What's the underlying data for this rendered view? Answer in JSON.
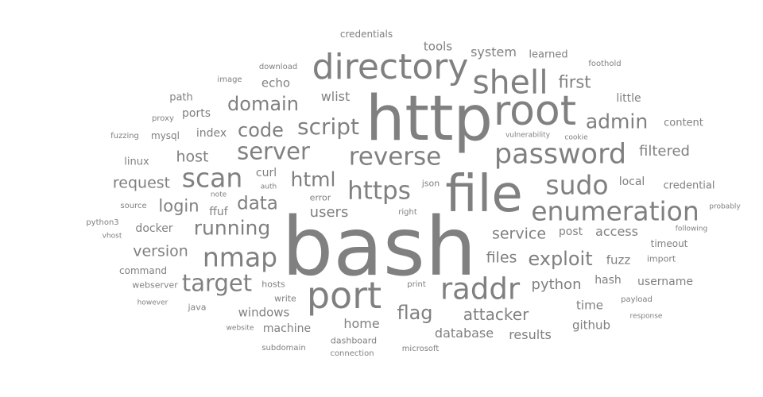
{
  "word_color": "#808080",
  "background_color": "#ffffff",
  "words": [
    {
      "text": "bash",
      "weight": 100
    },
    {
      "text": "http",
      "weight": 76
    },
    {
      "text": "file",
      "weight": 60
    },
    {
      "text": "root",
      "weight": 54
    },
    {
      "text": "port",
      "weight": 48
    },
    {
      "text": "directory",
      "weight": 44
    },
    {
      "text": "shell",
      "weight": 41
    },
    {
      "text": "raddr",
      "weight": 38
    },
    {
      "text": "password",
      "weight": 37
    },
    {
      "text": "scan",
      "weight": 36
    },
    {
      "text": "nmap",
      "weight": 36
    },
    {
      "text": "enumeration",
      "weight": 34
    },
    {
      "text": "sudo",
      "weight": 34
    },
    {
      "text": "https",
      "weight": 33
    },
    {
      "text": "server",
      "weight": 31
    },
    {
      "text": "reverse",
      "weight": 31
    },
    {
      "text": "target",
      "weight": 31
    },
    {
      "text": "script",
      "weight": 28
    },
    {
      "text": "html",
      "weight": 26
    },
    {
      "text": "running",
      "weight": 26
    },
    {
      "text": "admin",
      "weight": 26
    },
    {
      "text": "code",
      "weight": 25
    },
    {
      "text": "domain",
      "weight": 24
    },
    {
      "text": "exploit",
      "weight": 24
    },
    {
      "text": "flag",
      "weight": 24
    },
    {
      "text": "data",
      "weight": 24
    },
    {
      "text": "first",
      "weight": 21
    },
    {
      "text": "attacker",
      "weight": 21
    },
    {
      "text": "login",
      "weight": 21
    },
    {
      "text": "service",
      "weight": 21
    },
    {
      "text": "filtered",
      "weight": 19
    },
    {
      "text": "files",
      "weight": 19
    },
    {
      "text": "host",
      "weight": 19
    },
    {
      "text": "request",
      "weight": 19
    },
    {
      "text": "version",
      "weight": 19
    },
    {
      "text": "python",
      "weight": 18
    },
    {
      "text": "users",
      "weight": 18
    },
    {
      "text": "access",
      "weight": 17
    },
    {
      "text": "database",
      "weight": 17
    },
    {
      "text": "system",
      "weight": 17
    },
    {
      "text": "home",
      "weight": 17
    },
    {
      "text": "wlist",
      "weight": 17
    },
    {
      "text": "results",
      "weight": 17
    },
    {
      "text": "windows",
      "weight": 16
    },
    {
      "text": "echo",
      "weight": 16
    },
    {
      "text": "time",
      "weight": 16
    },
    {
      "text": "fuzz",
      "weight": 16
    },
    {
      "text": "tools",
      "weight": 16
    },
    {
      "text": "github",
      "weight": 16
    },
    {
      "text": "little",
      "weight": 15
    },
    {
      "text": "hash",
      "weight": 15
    },
    {
      "text": "username",
      "weight": 15
    },
    {
      "text": "local",
      "weight": 15
    },
    {
      "text": "curl",
      "weight": 15
    },
    {
      "text": "index",
      "weight": 14
    },
    {
      "text": "machine",
      "weight": 14
    },
    {
      "text": "ports",
      "weight": 14
    },
    {
      "text": "learned",
      "weight": 14
    },
    {
      "text": "content",
      "weight": 14
    },
    {
      "text": "credential",
      "weight": 14
    },
    {
      "text": "ffuf",
      "weight": 14
    },
    {
      "text": "docker",
      "weight": 14
    },
    {
      "text": "path",
      "weight": 13
    },
    {
      "text": "credentials",
      "weight": 13
    },
    {
      "text": "timeout",
      "weight": 13
    },
    {
      "text": "post",
      "weight": 13
    },
    {
      "text": "command",
      "weight": 13
    },
    {
      "text": "linux",
      "weight": 13
    },
    {
      "text": "mysql",
      "weight": 12
    },
    {
      "text": "error",
      "weight": 12
    },
    {
      "text": "json",
      "weight": 12
    },
    {
      "text": "hosts",
      "weight": 12
    },
    {
      "text": "write",
      "weight": 12
    },
    {
      "text": "java",
      "weight": 12
    },
    {
      "text": "webserver",
      "weight": 12
    },
    {
      "text": "import",
      "weight": 12
    },
    {
      "text": "dashboard",
      "weight": 12
    },
    {
      "text": "download",
      "weight": 11
    },
    {
      "text": "right",
      "weight": 11
    },
    {
      "text": "print",
      "weight": 11
    },
    {
      "text": "fuzzing",
      "weight": 11
    },
    {
      "text": "proxy",
      "weight": 11
    },
    {
      "text": "python3",
      "weight": 11
    },
    {
      "text": "connection",
      "weight": 11
    },
    {
      "text": "microsoft",
      "weight": 11
    },
    {
      "text": "subdomain",
      "weight": 11
    },
    {
      "text": "payload",
      "weight": 11
    },
    {
      "text": "source",
      "weight": 11
    },
    {
      "text": "image",
      "weight": 10
    },
    {
      "text": "foothold",
      "weight": 10
    },
    {
      "text": "vulnerability",
      "weight": 10
    },
    {
      "text": "cookie",
      "weight": 10
    },
    {
      "text": "probably",
      "weight": 10
    },
    {
      "text": "following",
      "weight": 10
    },
    {
      "text": "auth",
      "weight": 10
    },
    {
      "text": "note",
      "weight": 10
    },
    {
      "text": "vhost",
      "weight": 10
    },
    {
      "text": "however",
      "weight": 10
    },
    {
      "text": "website",
      "weight": 10
    },
    {
      "text": "response",
      "weight": 10
    }
  ]
}
